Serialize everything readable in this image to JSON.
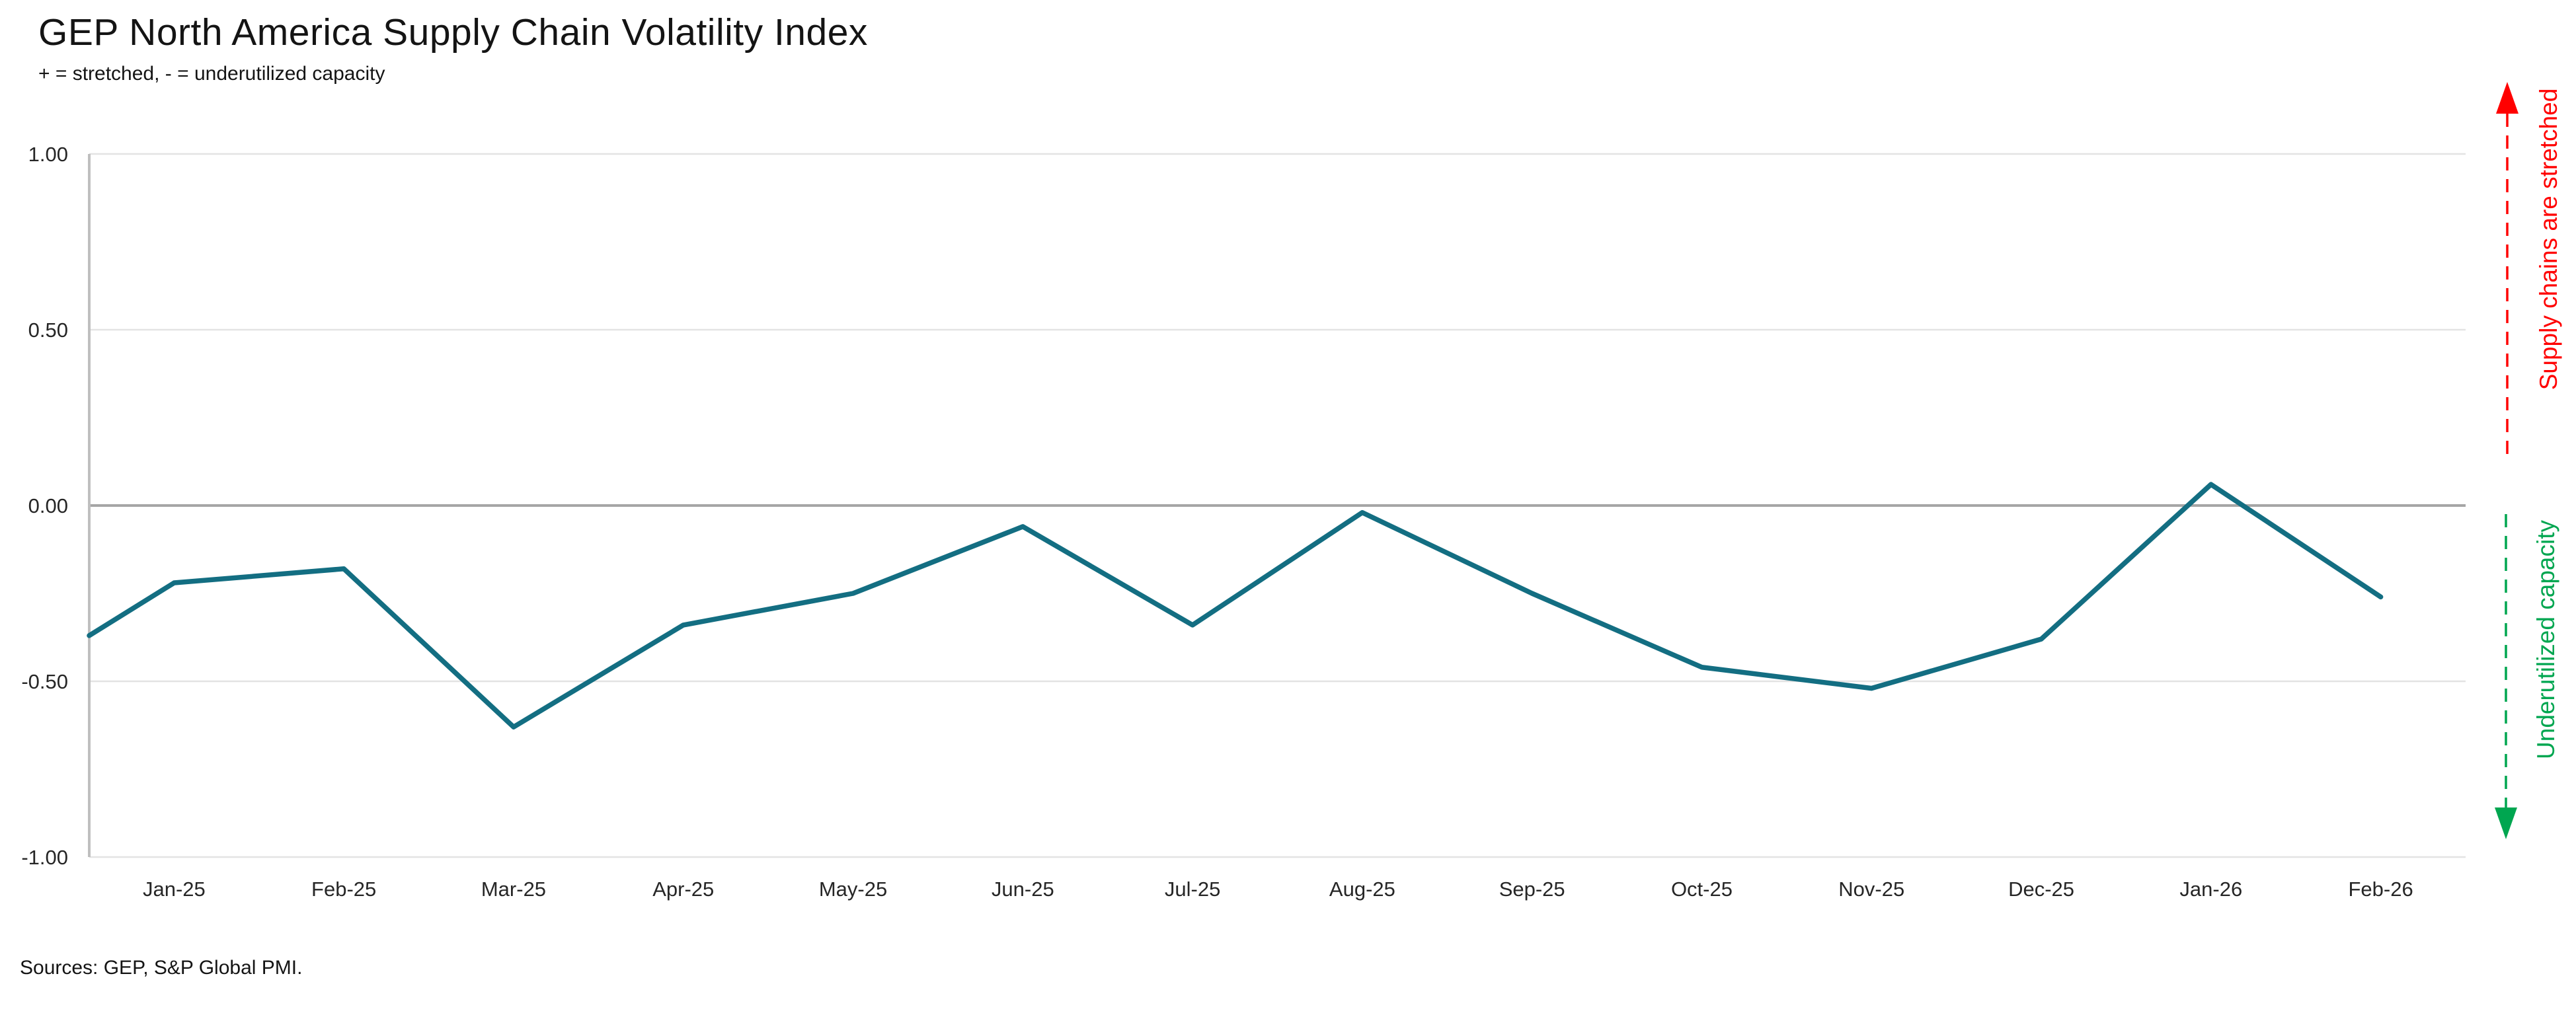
{
  "header": {
    "title": "GEP North America Supply Chain Volatility Index",
    "subtitle": "+ = stretched, - = underutilized capacity"
  },
  "footer": {
    "source_note": "Sources: GEP, S&P Global PMI."
  },
  "chart_data": {
    "type": "line",
    "title": "GEP North America Supply Chain Volatility Index",
    "subtitle": "+ = stretched, - = underutilized capacity",
    "categories": [
      "Jan-25",
      "Feb-25",
      "Mar-25",
      "Apr-25",
      "May-25",
      "Jun-25",
      "Jul-25",
      "Aug-25",
      "Sep-25",
      "Oct-25",
      "Nov-25",
      "Dec-25",
      "Jan-26",
      "Feb-26"
    ],
    "values": [
      -0.22,
      -0.18,
      -0.63,
      -0.34,
      -0.25,
      -0.06,
      -0.34,
      -0.02,
      -0.25,
      -0.46,
      -0.52,
      -0.38,
      0.06,
      -0.26
    ],
    "edge_start_value": -0.37,
    "ylim": [
      -1.0,
      1.0
    ],
    "y_ticks": [
      1.0,
      0.5,
      0.0,
      -0.5,
      -1.0
    ],
    "y_tick_labels": [
      "1.00",
      "0.50",
      "0.00",
      "-0.50",
      "-1.00"
    ],
    "grid": true,
    "legend": "none",
    "line_color": "#136E82",
    "grid_color": "#E3E3E3",
    "zero_line_color": "#A6A6A6",
    "axis_line_color": "#BFBFBF",
    "tick_label_color": "#262626",
    "annotations": {
      "top": {
        "label": "Supply chains are stretched",
        "color": "#FF0000",
        "direction": "up"
      },
      "bottom": {
        "label": "Underutilized capacity",
        "color": "#00A650",
        "direction": "down"
      }
    }
  }
}
